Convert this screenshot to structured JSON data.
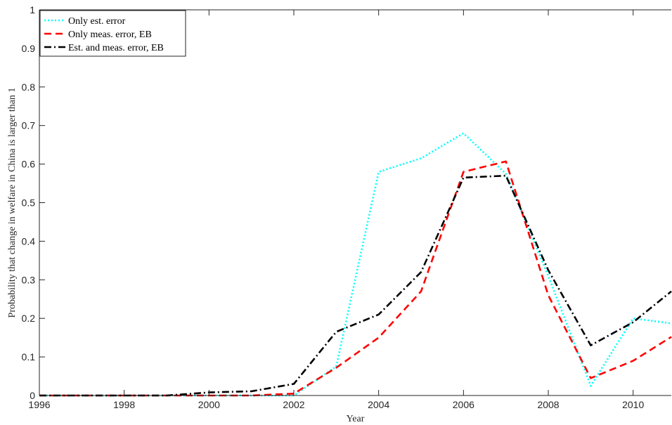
{
  "chart_data": {
    "type": "line",
    "title": "",
    "xlabel": "Year",
    "ylabel": "Probability that change in welfare in China is larger than 1",
    "xlim": [
      1996,
      2010.9
    ],
    "ylim": [
      0,
      1
    ],
    "xticks": [
      1996,
      1998,
      2000,
      2002,
      2004,
      2006,
      2008,
      2010
    ],
    "yticks": [
      0,
      0.1,
      0.2,
      0.3,
      0.4,
      0.5,
      0.6,
      0.7,
      0.8,
      0.9,
      1
    ],
    "xtick_labels": [
      "1996",
      "1998",
      "2000",
      "2002",
      "2004",
      "2006",
      "2008",
      "2010"
    ],
    "ytick_labels": [
      "0",
      "0.1",
      "0.2",
      "0.3",
      "0.4",
      "0.5",
      "0.6",
      "0.7",
      "0.8",
      "0.9",
      "1"
    ],
    "grid": false,
    "legend_position": "top-left",
    "x": [
      1996,
      1997,
      1998,
      1999,
      2000,
      2001,
      2002,
      2003,
      2004,
      2005,
      2006,
      2007,
      2008,
      2009,
      2010,
      2010.9
    ],
    "series": [
      {
        "name": "Only est. error",
        "color": "#00ffff",
        "dash": "dotted",
        "values": [
          0,
          0,
          0,
          0,
          0,
          0,
          0,
          0.075,
          0.58,
          0.615,
          0.68,
          0.575,
          0.31,
          0.025,
          0.2,
          0.187
        ]
      },
      {
        "name": "Only meas. error, EB",
        "color": "#ff0000",
        "dash": "dashed",
        "values": [
          0,
          0,
          0,
          0,
          0,
          0,
          0.005,
          0.072,
          0.15,
          0.27,
          0.58,
          0.607,
          0.26,
          0.045,
          0.09,
          0.152
        ]
      },
      {
        "name": "Est. and meas. error, EB",
        "color": "#000000",
        "dash": "dashdot",
        "values": [
          0,
          0,
          0,
          0,
          0.008,
          0.011,
          0.03,
          0.165,
          0.21,
          0.32,
          0.565,
          0.57,
          0.325,
          0.13,
          0.19,
          0.27
        ]
      }
    ]
  }
}
